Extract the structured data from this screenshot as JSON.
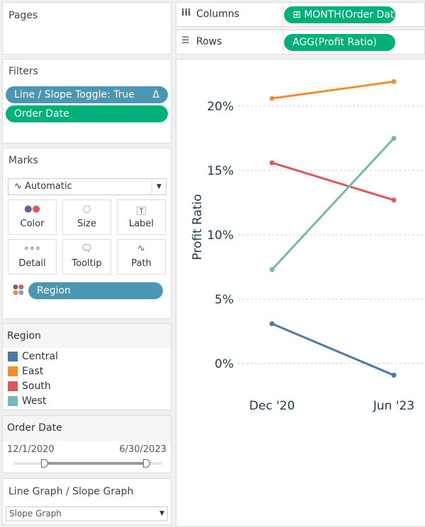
{
  "pages": {
    "title": "Pages"
  },
  "shelves": {
    "columns_label": "Columns",
    "columns_pill": "MONTH(Order Dat..",
    "rows_label": "Rows",
    "rows_pill": "AGG(Profit Ratio)"
  },
  "filters": {
    "title": "Filters",
    "items": [
      "Line / Slope Toggle: True",
      "Order Date"
    ],
    "delta": "Δ"
  },
  "marks": {
    "title": "Marks",
    "type": "Automatic",
    "buttons": [
      "Color",
      "Size",
      "Label",
      "Detail",
      "Tooltip",
      "Path"
    ],
    "field": "Region"
  },
  "legend": {
    "title": "Region",
    "items": [
      {
        "label": "Central",
        "color": "#4e79a7"
      },
      {
        "label": "East",
        "color": "#f28e2b"
      },
      {
        "label": "South",
        "color": "#e15759"
      },
      {
        "label": "West",
        "color": "#76b7b2"
      }
    ]
  },
  "order_date": {
    "title": "Order Date",
    "start": "12/1/2020",
    "end": "6/30/2023"
  },
  "toggle": {
    "title": "Line Graph / Slope Graph",
    "value": "Slope Graph"
  },
  "chart_data": {
    "type": "line",
    "categories": [
      "Dec '20",
      "Jun '23"
    ],
    "ylabel": "Profit Ratio",
    "yticks": [
      "0%",
      "5%",
      "10%",
      "15%",
      "20%"
    ],
    "ytick_values": [
      0,
      5,
      10,
      15,
      20
    ],
    "ylim": [
      -2.5,
      24.5
    ],
    "series": [
      {
        "name": "Central",
        "color": "#4e79a7",
        "values": [
          3.1,
          -0.9
        ]
      },
      {
        "name": "East",
        "color": "#f28e2b",
        "values": [
          20.6,
          21.9
        ]
      },
      {
        "name": "South",
        "color": "#e15759",
        "values": [
          15.6,
          12.7
        ]
      },
      {
        "name": "West",
        "color": "#76b7b2",
        "values": [
          7.3,
          17.5
        ]
      }
    ]
  }
}
